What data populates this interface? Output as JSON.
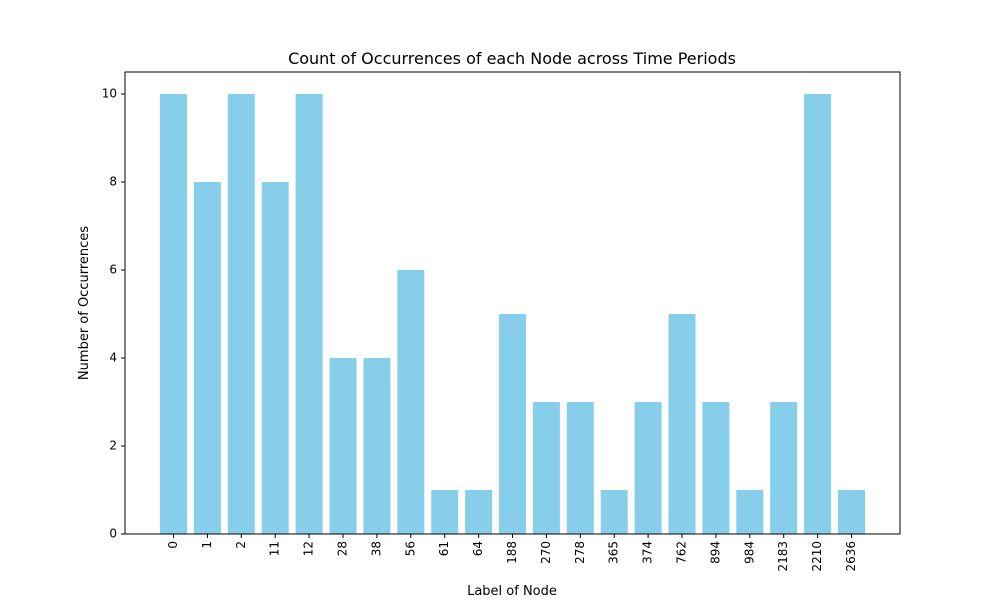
{
  "chart_data": {
    "type": "bar",
    "title": "Count of Occurrences of each Node across Time Periods",
    "xlabel": "Label of Node",
    "ylabel": "Number of Occurrences",
    "categories": [
      "0",
      "1",
      "2",
      "11",
      "12",
      "28",
      "38",
      "56",
      "61",
      "64",
      "188",
      "270",
      "278",
      "365",
      "374",
      "762",
      "894",
      "984",
      "2183",
      "2210",
      "2636"
    ],
    "values": [
      10,
      8,
      10,
      8,
      10,
      4,
      4,
      6,
      1,
      1,
      5,
      3,
      3,
      1,
      3,
      5,
      3,
      1,
      3,
      10,
      1
    ],
    "ylim": [
      0,
      10.5
    ],
    "yticks": [
      0,
      2,
      4,
      6,
      8,
      10
    ],
    "bar_color": "#87CEEB",
    "grid": false
  }
}
